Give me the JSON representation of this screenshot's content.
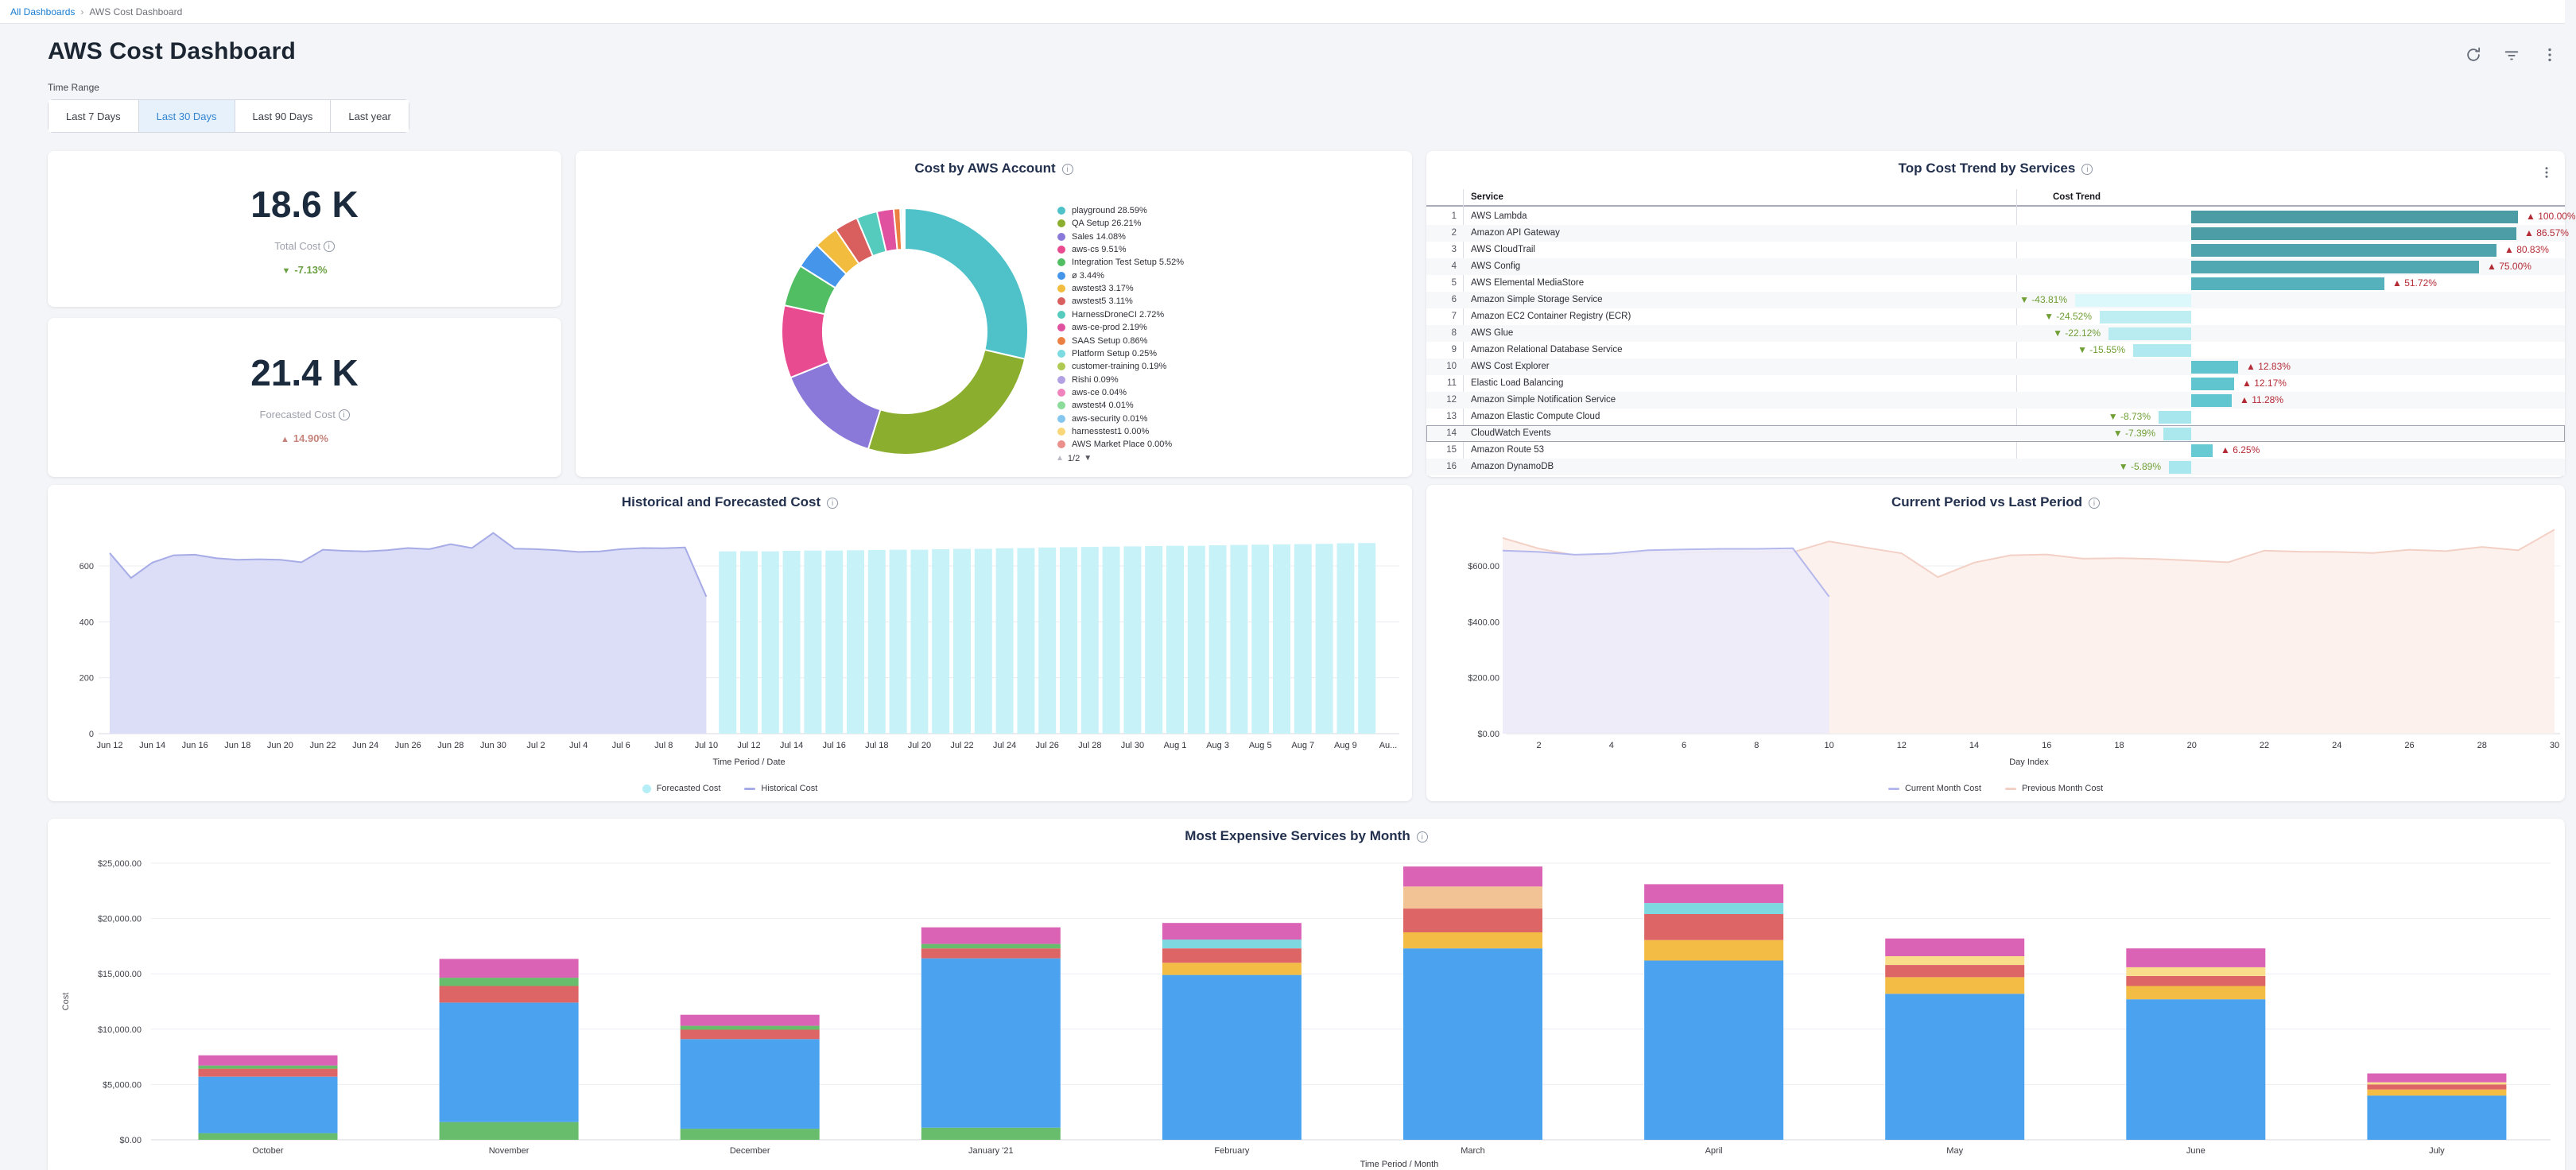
{
  "breadcrumb": {
    "root": "All Dashboards",
    "separator": "›",
    "current": "AWS Cost Dashboard"
  },
  "header": {
    "title": "AWS Cost Dashboard",
    "icons": [
      "refresh-icon",
      "filter-icon",
      "kebab-icon"
    ]
  },
  "time_range": {
    "label": "Time Range",
    "options": [
      "Last 7 Days",
      "Last 30 Days",
      "Last 90 Days",
      "Last year"
    ],
    "selected": "Last 30 Days"
  },
  "kpis": [
    {
      "value": "18.6 K",
      "label": "Total Cost",
      "arrow": "▼",
      "delta": "-7.13%",
      "direction": "down",
      "delta_color": "#6ba043"
    },
    {
      "value": "21.4 K",
      "label": "Forecasted Cost",
      "arrow": "▲",
      "delta": "14.90%",
      "direction": "up",
      "delta_color": "#c5837b"
    }
  ],
  "chart_data": [
    {
      "id": "cost_by_account",
      "type": "pie",
      "title": "Cost by AWS Account",
      "legend_position": "right",
      "pagination": "1/2",
      "pager_up": "▲",
      "pager_down": "▼",
      "slices": [
        {
          "label": "playground",
          "pct": 28.59,
          "color": "#4EC1C9"
        },
        {
          "label": "QA Setup",
          "pct": 26.21,
          "color": "#8BAE2E"
        },
        {
          "label": "Sales",
          "pct": 14.08,
          "color": "#8A79D9"
        },
        {
          "label": "aws-cs",
          "pct": 9.51,
          "color": "#E84B8F"
        },
        {
          "label": "Integration Test Setup",
          "pct": 5.52,
          "color": "#52BE63"
        },
        {
          "label": "ø",
          "pct": 3.44,
          "color": "#4596EA"
        },
        {
          "label": "awstest3",
          "pct": 3.17,
          "color": "#F2BC3E"
        },
        {
          "label": "awstest5",
          "pct": 3.11,
          "color": "#D95F5F"
        },
        {
          "label": "HarnessDroneCI",
          "pct": 2.72,
          "color": "#55CBBD"
        },
        {
          "label": "aws-ce-prod",
          "pct": 2.19,
          "color": "#E051A0"
        },
        {
          "label": "SAAS Setup",
          "pct": 0.86,
          "color": "#EC8042"
        },
        {
          "label": "Platform Setup",
          "pct": 0.25,
          "color": "#7CDBE0"
        },
        {
          "label": "customer-training",
          "pct": 0.19,
          "color": "#AFCA52"
        },
        {
          "label": "Rishi",
          "pct": 0.09,
          "color": "#B2A1E3"
        },
        {
          "label": "aws-ce",
          "pct": 0.04,
          "color": "#F183BC"
        },
        {
          "label": "awstest4",
          "pct": 0.01,
          "color": "#8BDC9B"
        },
        {
          "label": "aws-security",
          "pct": 0.01,
          "color": "#86C7F0"
        },
        {
          "label": "harnesstest1",
          "pct": 0.0,
          "color": "#F8D679"
        },
        {
          "label": "AWS Market Place",
          "pct": 0.0,
          "color": "#EB8F8A"
        }
      ]
    },
    {
      "id": "top_cost_trend",
      "type": "table",
      "title": "Top Cost Trend by Services",
      "columns": [
        "Service",
        "Cost Trend"
      ],
      "highlighted_rank": 14,
      "rows": [
        {
          "rank": 1,
          "service": "AWS Lambda",
          "pct": "100.00%",
          "direction": "up",
          "bar_frac": 1.0,
          "bar_color": "#4C9CA5"
        },
        {
          "rank": 2,
          "service": "Amazon API Gateway",
          "pct": "86.57%",
          "direction": "up",
          "bar_frac": 0.995,
          "bar_color": "#4C9DA6"
        },
        {
          "rank": 3,
          "service": "AWS CloudTrail",
          "pct": "80.83%",
          "direction": "up",
          "bar_frac": 0.934,
          "bar_color": "#4FA3AD"
        },
        {
          "rank": 4,
          "service": "AWS Config",
          "pct": "75.00%",
          "direction": "up",
          "bar_frac": 0.881,
          "bar_color": "#51A8B2"
        },
        {
          "rank": 5,
          "service": "AWS Elemental MediaStore",
          "pct": "51.72%",
          "direction": "up",
          "bar_frac": 0.591,
          "bar_color": "#55B2BC"
        },
        {
          "rank": 6,
          "service": "Amazon Simple Storage Service",
          "pct": "-43.81%",
          "direction": "down",
          "bar_frac": 0.355,
          "bar_color": "#DDF8FA"
        },
        {
          "rank": 7,
          "service": "Amazon EC2 Container Registry (ECR)",
          "pct": "-24.52%",
          "direction": "down",
          "bar_frac": 0.28,
          "bar_color": "#BEEEF2"
        },
        {
          "rank": 8,
          "service": "AWS Glue",
          "pct": "-22.12%",
          "direction": "down",
          "bar_frac": 0.253,
          "bar_color": "#B8ECF1"
        },
        {
          "rank": 9,
          "service": "Amazon Relational Database Service",
          "pct": "-15.55%",
          "direction": "down",
          "bar_frac": 0.178,
          "bar_color": "#B0E9EF"
        },
        {
          "rank": 10,
          "service": "AWS Cost Explorer",
          "pct": "12.83%",
          "direction": "up",
          "bar_frac": 0.144,
          "bar_color": "#5FC4CD"
        },
        {
          "rank": 11,
          "service": "Elastic Load Balancing",
          "pct": "12.17%",
          "direction": "up",
          "bar_frac": 0.131,
          "bar_color": "#60C5CE"
        },
        {
          "rank": 12,
          "service": "Amazon Simple Notification Service",
          "pct": "11.28%",
          "direction": "up",
          "bar_frac": 0.124,
          "bar_color": "#61C6CF"
        },
        {
          "rank": 13,
          "service": "Amazon Elastic Compute Cloud",
          "pct": "-8.73%",
          "direction": "down",
          "bar_frac": 0.1,
          "bar_color": "#A6E6EC"
        },
        {
          "rank": 14,
          "service": "CloudWatch Events",
          "pct": "-7.39%",
          "direction": "down",
          "bar_frac": 0.085,
          "bar_color": "#ABE8EE"
        },
        {
          "rank": 15,
          "service": "Amazon Route 53",
          "pct": "6.25%",
          "direction": "up",
          "bar_frac": 0.066,
          "bar_color": "#68CBD4"
        },
        {
          "rank": 16,
          "service": "Amazon DynamoDB",
          "pct": "-5.89%",
          "direction": "down",
          "bar_frac": 0.068,
          "bar_color": "#A8E7ED"
        }
      ]
    },
    {
      "id": "historical_forecast",
      "type": "area",
      "title": "Historical and Forecasted Cost",
      "xlabel": "Time Period / Date",
      "ylim": [
        0,
        750
      ],
      "y_ticks": [
        0,
        200,
        400,
        600
      ],
      "x_tick_labels": [
        "Jun 12",
        "Jun 14",
        "Jun 16",
        "Jun 18",
        "Jun 20",
        "Jun 22",
        "Jun 24",
        "Jun 26",
        "Jun 28",
        "Jun 30",
        "Jul 2",
        "Jul 4",
        "Jul 6",
        "Jul 8",
        "Jul 10",
        "Jul 12",
        "Jul 14",
        "Jul 16",
        "Jul 18",
        "Jul 20",
        "Jul 22",
        "Jul 24",
        "Jul 26",
        "Jul 28",
        "Jul 30",
        "Aug 1",
        "Aug 3",
        "Aug 5",
        "Aug 7",
        "Aug 9",
        "Au..."
      ],
      "historical_values": [
        646,
        557,
        612,
        638,
        640,
        628,
        622,
        624,
        622,
        613,
        658,
        654,
        652,
        656,
        664,
        660,
        678,
        664,
        718,
        662,
        660,
        656,
        650,
        652,
        660,
        664,
        663,
        666,
        490
      ],
      "forecast_values": [
        652,
        653,
        652,
        654,
        655,
        655,
        656,
        657,
        658,
        658,
        660,
        661,
        661,
        663,
        664,
        666,
        667,
        668,
        669,
        670,
        671,
        672,
        672,
        674,
        675,
        676,
        677,
        678,
        679,
        681,
        682
      ],
      "legend": [
        "Forecasted Cost",
        "Historical Cost"
      ],
      "colors": {
        "historical_fill": "#dcddf6",
        "historical_line": "#a7ace6",
        "forecast_bar": "#c7f2f8"
      }
    },
    {
      "id": "current_vs_last",
      "type": "area",
      "title": "Current Period vs Last Period",
      "xlabel": "Day Index",
      "y_tick_labels": [
        "$0.00",
        "$200.00",
        "$400.00",
        "$600.00"
      ],
      "y_ticks": [
        0,
        200,
        400,
        600
      ],
      "x_ticks": [
        2,
        4,
        6,
        8,
        10,
        12,
        14,
        16,
        18,
        20,
        22,
        24,
        26,
        28,
        30
      ],
      "series": [
        {
          "name": "Current Month Cost",
          "values": [
            655,
            650,
            640,
            644,
            656,
            659,
            661,
            661,
            663,
            490
          ]
        },
        {
          "name": "Previous Month Cost",
          "values": [
            700,
            662,
            638,
            634,
            650,
            646,
            652,
            650,
            649,
            688,
            666,
            645,
            560,
            612,
            638,
            641,
            626,
            628,
            625,
            619,
            613,
            655,
            651,
            650,
            646,
            658,
            653,
            668,
            656,
            730
          ]
        }
      ],
      "colors": {
        "current_fill": "#ecebf8",
        "current_line": "#b4b8ec",
        "previous_fill": "#fcefeb",
        "previous_line": "#f3d0c5"
      }
    },
    {
      "id": "most_expensive_by_month",
      "type": "stacked-bar",
      "title": "Most Expensive Services by Month",
      "xlabel": "Time Period / Month",
      "ylabel": "Cost",
      "ylim": [
        0,
        25000
      ],
      "y_tick_labels": [
        "$0.00",
        "$5,000.00",
        "$10,000.00",
        "$15,000.00",
        "$20,000.00",
        "$25,000.00"
      ],
      "y_ticks": [
        0,
        5000,
        10000,
        15000,
        20000,
        25000
      ],
      "categories": [
        "October",
        "November",
        "December",
        "January '21",
        "February",
        "March",
        "April",
        "May",
        "June",
        "July"
      ],
      "palette": {
        "blue": "#4BA3F0",
        "green": "#67BD6B",
        "red": "#DD6565",
        "pink": "#DB63B6",
        "yellow": "#F3BD45",
        "lightyellow": "#F9DD8A",
        "cyan": "#7ED8DF",
        "peach": "#F2C394"
      },
      "bars": [
        {
          "month": "October",
          "segments": [
            [
              "green",
              600
            ],
            [
              "blue",
              5100
            ],
            [
              "red",
              720
            ],
            [
              "green",
              290
            ],
            [
              "pink",
              930
            ]
          ]
        },
        {
          "month": "November",
          "segments": [
            [
              "green",
              1600
            ],
            [
              "blue",
              10800
            ],
            [
              "red",
              1500
            ],
            [
              "green",
              750
            ],
            [
              "pink",
              1700
            ]
          ]
        },
        {
          "month": "December",
          "segments": [
            [
              "green",
              1000
            ],
            [
              "blue",
              8100
            ],
            [
              "red",
              850
            ],
            [
              "green",
              350
            ],
            [
              "pink",
              1000
            ]
          ]
        },
        {
          "month": "January '21",
          "segments": [
            [
              "green",
              1100
            ],
            [
              "blue",
              15300
            ],
            [
              "red",
              900
            ],
            [
              "green",
              400
            ],
            [
              "pink",
              1500
            ]
          ]
        },
        {
          "month": "February",
          "segments": [
            [
              "blue",
              14900
            ],
            [
              "yellow",
              1100
            ],
            [
              "red",
              1300
            ],
            [
              "cyan",
              800
            ],
            [
              "pink",
              1500
            ]
          ]
        },
        {
          "month": "March",
          "segments": [
            [
              "blue",
              17300
            ],
            [
              "yellow",
              1450
            ],
            [
              "red",
              2150
            ],
            [
              "peach",
              2000
            ],
            [
              "pink",
              1800
            ]
          ]
        },
        {
          "month": "April",
          "segments": [
            [
              "blue",
              16200
            ],
            [
              "yellow",
              1850
            ],
            [
              "red",
              2350
            ],
            [
              "cyan",
              1000
            ],
            [
              "pink",
              1700
            ]
          ]
        },
        {
          "month": "May",
          "segments": [
            [
              "blue",
              13200
            ],
            [
              "yellow",
              1500
            ],
            [
              "red",
              1100
            ],
            [
              "lightyellow",
              800
            ],
            [
              "pink",
              1600
            ]
          ]
        },
        {
          "month": "June",
          "segments": [
            [
              "blue",
              12700
            ],
            [
              "yellow",
              1200
            ],
            [
              "red",
              900
            ],
            [
              "lightyellow",
              800
            ],
            [
              "pink",
              1700
            ]
          ]
        },
        {
          "month": "July",
          "segments": [
            [
              "blue",
              4000
            ],
            [
              "yellow",
              550
            ],
            [
              "red",
              450
            ],
            [
              "lightyellow",
              200
            ],
            [
              "pink",
              800
            ]
          ]
        }
      ]
    }
  ]
}
